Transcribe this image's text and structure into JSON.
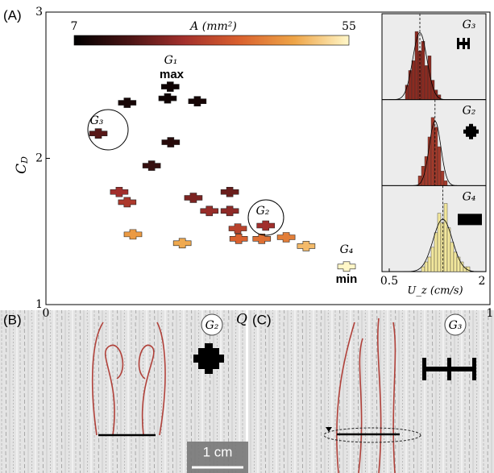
{
  "chart_data": [
    {
      "type": "scatter",
      "colorbar": {
        "label": "A (mm²)",
        "lim": [
          7,
          55
        ],
        "ticks": [
          7,
          55
        ],
        "colormap": [
          "#000000",
          "#4a1414",
          "#a3302c",
          "#d9602e",
          "#eea447",
          "#fff7c8"
        ]
      },
      "x_label": "Q",
      "y_label": {
        "main": "C",
        "sub": "D"
      },
      "xlim": [
        0,
        1
      ],
      "xticks": [
        0,
        1
      ],
      "ylim": [
        1,
        3
      ],
      "yticks": [
        1,
        2,
        3
      ],
      "x": [
        0.183,
        0.28,
        0.274,
        0.341,
        0.281,
        0.118,
        0.238,
        0.165,
        0.183,
        0.332,
        0.414,
        0.368,
        0.414,
        0.495,
        0.432,
        0.434,
        0.486,
        0.541,
        0.196,
        0.307,
        0.586,
        0.677
      ],
      "y": [
        2.38,
        2.49,
        2.41,
        2.39,
        2.11,
        2.17,
        1.95,
        1.77,
        1.7,
        1.73,
        1.77,
        1.64,
        1.64,
        1.54,
        1.52,
        1.45,
        1.45,
        1.46,
        1.48,
        1.42,
        1.4,
        1.26
      ],
      "A": [
        10,
        9,
        9,
        10,
        12,
        18,
        14,
        26,
        28,
        22,
        20,
        25,
        24,
        26,
        30,
        36,
        38,
        40,
        44,
        46,
        48,
        55
      ],
      "annotations": [
        {
          "text": "G₁",
          "note": "max"
        },
        {
          "text": "G₃"
        },
        {
          "text": "G₂"
        },
        {
          "text": "G₄",
          "note": "min"
        }
      ]
    },
    {
      "type": "histogram",
      "label": "G₃",
      "color": "#8b2a20",
      "xlim": [
        0.5,
        2
      ],
      "ylim": [
        0,
        16
      ],
      "mean": 0.975,
      "std": 0.11,
      "bins": [
        0.75,
        0.8,
        0.85,
        0.9,
        0.95,
        1.0,
        1.05,
        1.1,
        1.15,
        1.2,
        1.25,
        1.3
      ],
      "counts": [
        3,
        6,
        8,
        14,
        10,
        12,
        7,
        9,
        4,
        2,
        1
      ]
    },
    {
      "type": "histogram",
      "label": "G₂",
      "color": "#a33a2b",
      "xlim": [
        0.5,
        2
      ],
      "ylim": [
        0,
        16
      ],
      "mean": 1.21,
      "std": 0.09,
      "bins": [
        0.95,
        1.0,
        1.05,
        1.1,
        1.15,
        1.2,
        1.25,
        1.3,
        1.35,
        1.4
      ],
      "counts": [
        2,
        4,
        6,
        10,
        14,
        12,
        8,
        3,
        1
      ]
    },
    {
      "type": "histogram",
      "label": "G₄",
      "color": "#f2e79c",
      "xlim": [
        0.5,
        2
      ],
      "ylim": [
        0,
        16
      ],
      "mean": 1.33,
      "std": 0.15,
      "bins": [
        1.0,
        1.05,
        1.1,
        1.15,
        1.2,
        1.25,
        1.3,
        1.35,
        1.4,
        1.45,
        1.5,
        1.55,
        1.6,
        1.65,
        1.7,
        1.75
      ],
      "counts": [
        1,
        2,
        3,
        5,
        8,
        12,
        10,
        14,
        9,
        6,
        4,
        3,
        2,
        1,
        1
      ],
      "xticks": [
        0.5,
        2
      ],
      "x_label": "U_z (cm/s)"
    }
  ],
  "panels": {
    "A": "(A)",
    "B": "(B)",
    "C": "(C)",
    "B_label": "G₂",
    "C_label": "G₃",
    "scale": "1 cm"
  }
}
